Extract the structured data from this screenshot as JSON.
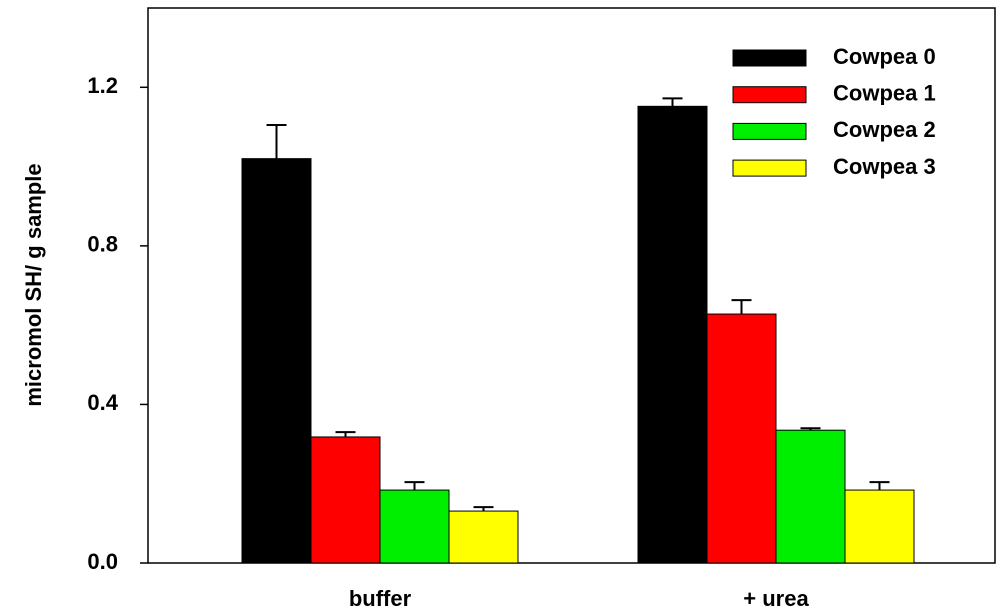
{
  "chart_data": {
    "type": "bar",
    "y_label": "micromol SH/ g sample",
    "categories": [
      "buffer",
      "+ urea"
    ],
    "series": [
      {
        "name": "Cowpea 0",
        "color": "#000000",
        "values": [
          1.02,
          1.152
        ],
        "errors": [
          0.085,
          0.02
        ]
      },
      {
        "name": "Cowpea 1",
        "color": "#ff0000",
        "values": [
          0.318,
          0.628
        ],
        "errors": [
          0.012,
          0.035
        ]
      },
      {
        "name": "Cowpea 2",
        "color": "#00ee00",
        "values": [
          0.184,
          0.335
        ],
        "errors": [
          0.02,
          0.005
        ]
      },
      {
        "name": "Cowpea 3",
        "color": "#ffff00",
        "values": [
          0.131,
          0.184
        ],
        "errors": [
          0.01,
          0.02
        ]
      }
    ],
    "ylim": [
      0,
      1.4
    ],
    "yticks": [
      {
        "value": 0,
        "label": "0.0"
      },
      0.4,
      0.8,
      1.2
    ],
    "legend": "upper-right"
  }
}
